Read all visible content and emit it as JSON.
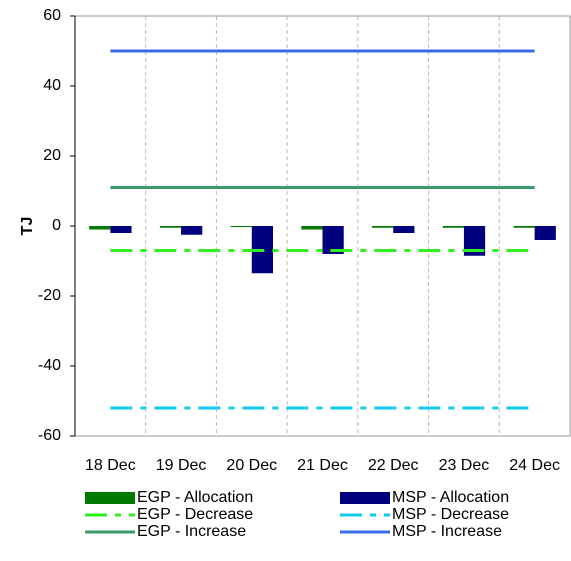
{
  "chart_data": {
    "type": "bar",
    "y_label": "TJ",
    "categories": [
      "18 Dec",
      "19 Dec",
      "20 Dec",
      "21 Dec",
      "22 Dec",
      "23 Dec",
      "24 Dec"
    ],
    "series": [
      {
        "name": "EGP - Allocation",
        "type": "bar",
        "color": "#007a00",
        "values": [
          -1,
          -0.5,
          -0.3,
          -1,
          -0.5,
          -0.5,
          -0.5
        ]
      },
      {
        "name": "MSP - Allocation",
        "type": "bar",
        "color": "#00007f",
        "values": [
          -2,
          -2.5,
          -13.5,
          -8,
          -2,
          -8.5,
          -4
        ]
      },
      {
        "name": "EGP - Decrease",
        "type": "line",
        "style": "dashed",
        "color": "#33ee22",
        "values": [
          -7,
          -7,
          -7,
          -7,
          -7,
          -7,
          -7
        ]
      },
      {
        "name": "MSP - Decrease",
        "type": "line",
        "style": "dashed",
        "color": "#11ccee",
        "values": [
          -52,
          -52,
          -52,
          -52,
          -52,
          -52,
          -52
        ]
      },
      {
        "name": "EGP - Increase",
        "type": "line",
        "style": "solid",
        "color": "#3a9a6a",
        "values": [
          11,
          11,
          11,
          11,
          11,
          11,
          11
        ]
      },
      {
        "name": "MSP - Increase",
        "type": "line",
        "style": "solid",
        "color": "#3a6ee8",
        "values": [
          50,
          50,
          50,
          50,
          50,
          50,
          50
        ]
      }
    ],
    "ylim": [
      -60,
      60
    ],
    "yticks": [
      -60,
      -40,
      -20,
      0,
      20,
      40,
      60
    ],
    "grid": true
  }
}
